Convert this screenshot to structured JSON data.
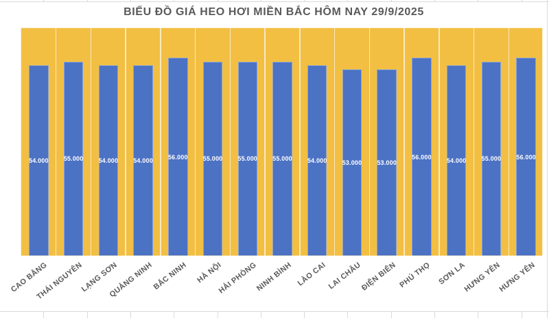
{
  "chart": {
    "colors": {
      "plot_background": "#F2BF43",
      "bar": "#4C72C4",
      "title_text": "#595959",
      "axis_text": "#595959",
      "value_text": "#ffffff",
      "gridline": "#d9d9d9",
      "chart_background": "#ffffff"
    }
  },
  "chart_data": {
    "type": "bar",
    "title": "BIỂU ĐỒ GIÁ HEO HƠI MIỀN BẮC HÔM NAY 29/9/2025",
    "categories": [
      "CAO BẰNG",
      "THÁI NGUYÊN",
      "LẠNG SƠN",
      "QUẢNG NINH",
      "BẮC NINH",
      "HÀ NỘI",
      "HẢI PHÒNG",
      "NINH BÌNH",
      "LÀO CAI",
      "LAI CHÂU",
      "ĐIỆN BIÊN",
      "PHÚ THỌ",
      "SƠN LA",
      "HƯNG YÊN",
      "HƯNG YÊN"
    ],
    "values": [
      54000,
      55000,
      54000,
      54000,
      56000,
      55000,
      55000,
      55000,
      54000,
      53000,
      53000,
      56000,
      54000,
      55000,
      56000
    ],
    "value_labels": [
      "54.000",
      "55.000",
      "54.000",
      "54.000",
      "56.000",
      "55.000",
      "55.000",
      "55.000",
      "54.000",
      "53.000",
      "53.000",
      "56.000",
      "54.000",
      "55.000",
      "56.000"
    ],
    "xlabel": "",
    "ylabel": "",
    "legend": "none",
    "grid": "vertical category separators only",
    "value_label_position": "inside-center",
    "category_label_rotation_deg": -38
  }
}
